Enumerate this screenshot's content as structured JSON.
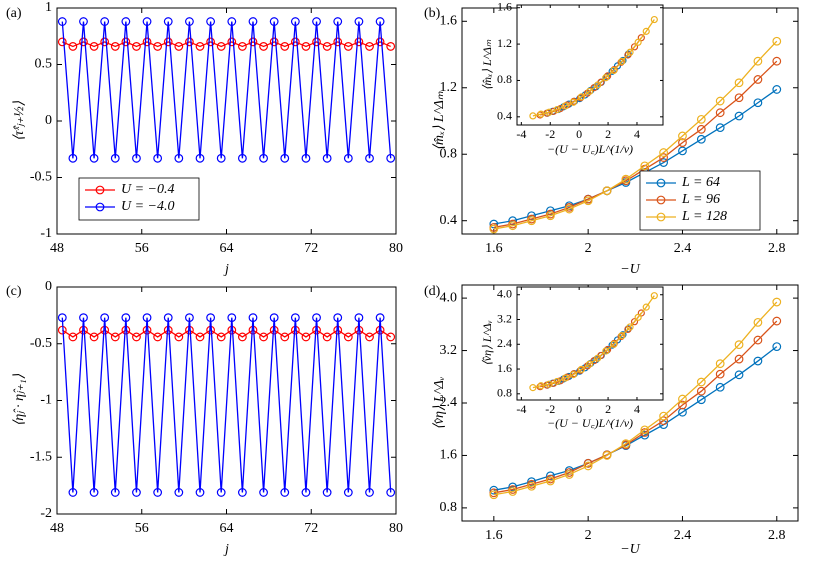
{
  "chart_data": [
    {
      "type": "line",
      "panel_label": "(a)",
      "xlabel": "j",
      "ylabel": "⟨τ̂ˣⱼ₊½⟩",
      "xlim": [
        48,
        80
      ],
      "ylim": [
        -1,
        1
      ],
      "xticks": [
        48,
        56,
        64,
        72,
        80
      ],
      "yticks": [
        -1,
        -0.5,
        0,
        0.5,
        1
      ],
      "legend": "lower left",
      "x": [
        48.5,
        49.5,
        50.5,
        51.5,
        52.5,
        53.5,
        54.5,
        55.5,
        56.5,
        57.5,
        58.5,
        59.5,
        60.5,
        61.5,
        62.5,
        63.5,
        64.5,
        65.5,
        66.5,
        67.5,
        68.5,
        69.5,
        70.5,
        71.5,
        72.5,
        73.5,
        74.5,
        75.5,
        76.5,
        77.5,
        78.5,
        79.5
      ],
      "series": [
        {
          "name": "U = −0.4",
          "color": "#ff0000",
          "values": [
            0.7,
            0.66,
            0.7,
            0.66,
            0.7,
            0.66,
            0.7,
            0.66,
            0.7,
            0.66,
            0.7,
            0.66,
            0.7,
            0.66,
            0.7,
            0.66,
            0.7,
            0.66,
            0.7,
            0.66,
            0.7,
            0.66,
            0.7,
            0.66,
            0.7,
            0.66,
            0.7,
            0.66,
            0.7,
            0.66,
            0.7,
            0.66
          ]
        },
        {
          "name": "U = −4.0",
          "color": "#0000ff",
          "values": [
            0.88,
            -0.33,
            0.88,
            -0.33,
            0.88,
            -0.33,
            0.88,
            -0.33,
            0.88,
            -0.33,
            0.88,
            -0.33,
            0.88,
            -0.33,
            0.88,
            -0.33,
            0.88,
            -0.33,
            0.88,
            -0.33,
            0.88,
            -0.33,
            0.88,
            -0.33,
            0.88,
            -0.33,
            0.88,
            -0.33,
            0.88,
            -0.33,
            0.88,
            -0.33
          ]
        }
      ]
    },
    {
      "type": "line",
      "panel_label": "(b)",
      "xlabel": "−U",
      "ylabel": "⟨m̂ₓ⟩ L^Δₘ",
      "xlim": [
        1.465,
        2.89
      ],
      "ylim": [
        0.32,
        1.68
      ],
      "xticks": [
        1.6,
        2,
        2.4,
        2.8
      ],
      "yticks": [
        0.4,
        0.8,
        1.2,
        1.6
      ],
      "legend": "lower right",
      "x": [
        1.6,
        1.68,
        1.76,
        1.84,
        1.92,
        2.0,
        2.08,
        2.16,
        2.24,
        2.32,
        2.4,
        2.48,
        2.56,
        2.64,
        2.72,
        2.8
      ],
      "series": [
        {
          "name": "L = 64",
          "color": "#0072bd",
          "values": [
            0.38,
            0.4,
            0.43,
            0.46,
            0.49,
            0.53,
            0.58,
            0.63,
            0.69,
            0.75,
            0.82,
            0.89,
            0.96,
            1.03,
            1.11,
            1.19
          ]
        },
        {
          "name": "L = 96",
          "color": "#d95319",
          "values": [
            0.36,
            0.38,
            0.41,
            0.44,
            0.48,
            0.53,
            0.58,
            0.64,
            0.71,
            0.78,
            0.87,
            0.95,
            1.05,
            1.14,
            1.25,
            1.36
          ]
        },
        {
          "name": "L = 128",
          "color": "#edb120",
          "values": [
            0.35,
            0.37,
            0.4,
            0.43,
            0.47,
            0.52,
            0.58,
            0.65,
            0.73,
            0.81,
            0.91,
            1.01,
            1.12,
            1.23,
            1.36,
            1.48
          ]
        }
      ]
    },
    {
      "type": "line",
      "xlabel": "−(U − U꜀)L^(1/ν)",
      "ylabel": "⟨m̂ₓ⟩ L^Δₘ",
      "xlim": [
        -4.3,
        5.8
      ],
      "ylim": [
        0.31,
        1.63
      ],
      "xticks": [
        -4,
        -2,
        0,
        2,
        4
      ],
      "yticks": [
        0.4,
        0.8,
        1.2,
        1.6
      ],
      "series": [
        {
          "color": "#0072bd",
          "x": [
            -2.2,
            -1.83,
            -1.45,
            -1.08,
            -0.71,
            -0.33,
            0.04,
            0.41,
            0.79,
            1.16,
            1.53,
            1.91,
            2.28,
            2.65,
            3.03,
            3.4
          ],
          "values": [
            0.44,
            0.46,
            0.48,
            0.51,
            0.54,
            0.57,
            0.6,
            0.64,
            0.69,
            0.73,
            0.78,
            0.84,
            0.9,
            0.96,
            1.02,
            1.09
          ]
        },
        {
          "color": "#d95319",
          "x": [
            -2.7,
            -2.23,
            -1.77,
            -1.3,
            -0.83,
            -0.37,
            0.1,
            0.57,
            1.03,
            1.5,
            1.97,
            2.43,
            2.9,
            3.37,
            3.83,
            4.3
          ],
          "values": [
            0.42,
            0.44,
            0.46,
            0.49,
            0.53,
            0.57,
            0.61,
            0.66,
            0.72,
            0.78,
            0.85,
            0.92,
            1.0,
            1.08,
            1.17,
            1.27
          ]
        },
        {
          "color": "#edb120",
          "x": [
            -3.2,
            -2.64,
            -2.08,
            -1.52,
            -0.96,
            -0.4,
            0.16,
            0.72,
            1.28,
            1.84,
            2.4,
            2.96,
            3.52,
            4.08,
            4.64,
            5.2
          ],
          "values": [
            0.41,
            0.43,
            0.45,
            0.48,
            0.52,
            0.56,
            0.62,
            0.68,
            0.75,
            0.83,
            0.91,
            1.01,
            1.11,
            1.22,
            1.34,
            1.47
          ]
        }
      ]
    },
    {
      "type": "line",
      "panel_label": "(c)",
      "xlabel": "j",
      "ylabel": "⟨η̂ⱼ · η̂ⱼ₊₁⟩",
      "xlim": [
        48,
        80
      ],
      "ylim": [
        -2,
        0
      ],
      "xticks": [
        48,
        56,
        64,
        72,
        80
      ],
      "yticks": [
        -2,
        -1.5,
        -1,
        -0.5,
        0
      ],
      "x": [
        48.5,
        49.5,
        50.5,
        51.5,
        52.5,
        53.5,
        54.5,
        55.5,
        56.5,
        57.5,
        58.5,
        59.5,
        60.5,
        61.5,
        62.5,
        63.5,
        64.5,
        65.5,
        66.5,
        67.5,
        68.5,
        69.5,
        70.5,
        71.5,
        72.5,
        73.5,
        74.5,
        75.5,
        76.5,
        77.5,
        78.5,
        79.5
      ],
      "series": [
        {
          "color": "#ff0000",
          "values": [
            -0.38,
            -0.44,
            -0.38,
            -0.44,
            -0.38,
            -0.44,
            -0.38,
            -0.44,
            -0.38,
            -0.44,
            -0.38,
            -0.44,
            -0.38,
            -0.44,
            -0.38,
            -0.44,
            -0.38,
            -0.44,
            -0.38,
            -0.44,
            -0.38,
            -0.44,
            -0.38,
            -0.44,
            -0.38,
            -0.44,
            -0.38,
            -0.44,
            -0.38,
            -0.44,
            -0.38,
            -0.44
          ]
        },
        {
          "color": "#0000ff",
          "values": [
            -0.27,
            -1.81,
            -0.27,
            -1.81,
            -0.27,
            -1.81,
            -0.27,
            -1.81,
            -0.27,
            -1.81,
            -0.27,
            -1.81,
            -0.27,
            -1.81,
            -0.27,
            -1.81,
            -0.27,
            -1.81,
            -0.27,
            -1.81,
            -0.27,
            -1.81,
            -0.27,
            -1.81,
            -0.27,
            -1.81,
            -0.27,
            -1.81,
            -0.27,
            -1.81,
            -0.27,
            -1.81
          ]
        }
      ]
    },
    {
      "type": "line",
      "panel_label": "(d)",
      "xlabel": "−U",
      "ylabel": "⟨v̂η⟩ L^Δᵥ",
      "xlim": [
        1.465,
        2.89
      ],
      "ylim": [
        0.6,
        4.2
      ],
      "xticks": [
        1.6,
        2,
        2.4,
        2.8
      ],
      "yticks": [
        0.8,
        1.6,
        2.4,
        3.2,
        {
          "value": 4,
          "label": "4.0"
        }
      ],
      "x": [
        1.6,
        1.68,
        1.76,
        1.84,
        1.92,
        2.0,
        2.08,
        2.16,
        2.24,
        2.32,
        2.4,
        2.48,
        2.56,
        2.64,
        2.72,
        2.8
      ],
      "series": [
        {
          "color": "#0072bd",
          "values": [
            1.07,
            1.12,
            1.2,
            1.29,
            1.37,
            1.48,
            1.61,
            1.75,
            1.91,
            2.07,
            2.26,
            2.45,
            2.64,
            2.83,
            3.04,
            3.26
          ]
        },
        {
          "color": "#d95319",
          "values": [
            1.03,
            1.08,
            1.16,
            1.24,
            1.34,
            1.48,
            1.61,
            1.76,
            1.95,
            2.13,
            2.37,
            2.58,
            2.84,
            3.07,
            3.36,
            3.65
          ]
        },
        {
          "color": "#edb120",
          "values": [
            1.0,
            1.05,
            1.13,
            1.21,
            1.31,
            1.44,
            1.6,
            1.78,
            1.99,
            2.2,
            2.46,
            2.72,
            3.0,
            3.29,
            3.63,
            3.94
          ]
        }
      ]
    },
    {
      "type": "line",
      "xlabel": "−(U − U꜀)L^(1/ν)",
      "ylabel": "⟨v̂η⟩ L^Δᵥ",
      "xlim": [
        -4.3,
        5.8
      ],
      "ylim": [
        0.6,
        4.25
      ],
      "xticks": [
        -4,
        -2,
        0,
        2,
        4
      ],
      "yticks": [
        0.8,
        1.6,
        2.4,
        3.2,
        {
          "value": 4,
          "label": "4.0"
        }
      ],
      "series": [
        {
          "color": "#0072bd",
          "x": [
            -2.2,
            -1.83,
            -1.45,
            -1.08,
            -0.71,
            -0.33,
            0.04,
            0.41,
            0.79,
            1.16,
            1.53,
            1.91,
            2.28,
            2.65,
            3.03,
            3.4
          ],
          "values": [
            1.08,
            1.14,
            1.2,
            1.28,
            1.36,
            1.45,
            1.53,
            1.64,
            1.78,
            1.9,
            2.04,
            2.2,
            2.37,
            2.54,
            2.71,
            2.9
          ]
        },
        {
          "color": "#d95319",
          "x": [
            -2.7,
            -2.23,
            -1.77,
            -1.3,
            -0.83,
            -0.37,
            0.1,
            0.57,
            1.03,
            1.5,
            1.97,
            2.43,
            2.9,
            3.37,
            3.83,
            4.3
          ],
          "values": [
            1.03,
            1.08,
            1.14,
            1.22,
            1.34,
            1.45,
            1.56,
            1.7,
            1.87,
            2.04,
            2.23,
            2.43,
            2.65,
            2.88,
            3.13,
            3.41
          ]
        },
        {
          "color": "#edb120",
          "x": [
            -3.2,
            -2.64,
            -2.08,
            -1.52,
            -0.96,
            -0.4,
            0.16,
            0.72,
            1.28,
            1.84,
            2.4,
            2.96,
            3.52,
            4.08,
            4.64,
            5.2
          ],
          "values": [
            1.0,
            1.06,
            1.11,
            1.2,
            1.31,
            1.42,
            1.59,
            1.76,
            1.95,
            2.18,
            2.4,
            2.68,
            2.96,
            3.27,
            3.6,
            3.97
          ]
        }
      ]
    }
  ]
}
